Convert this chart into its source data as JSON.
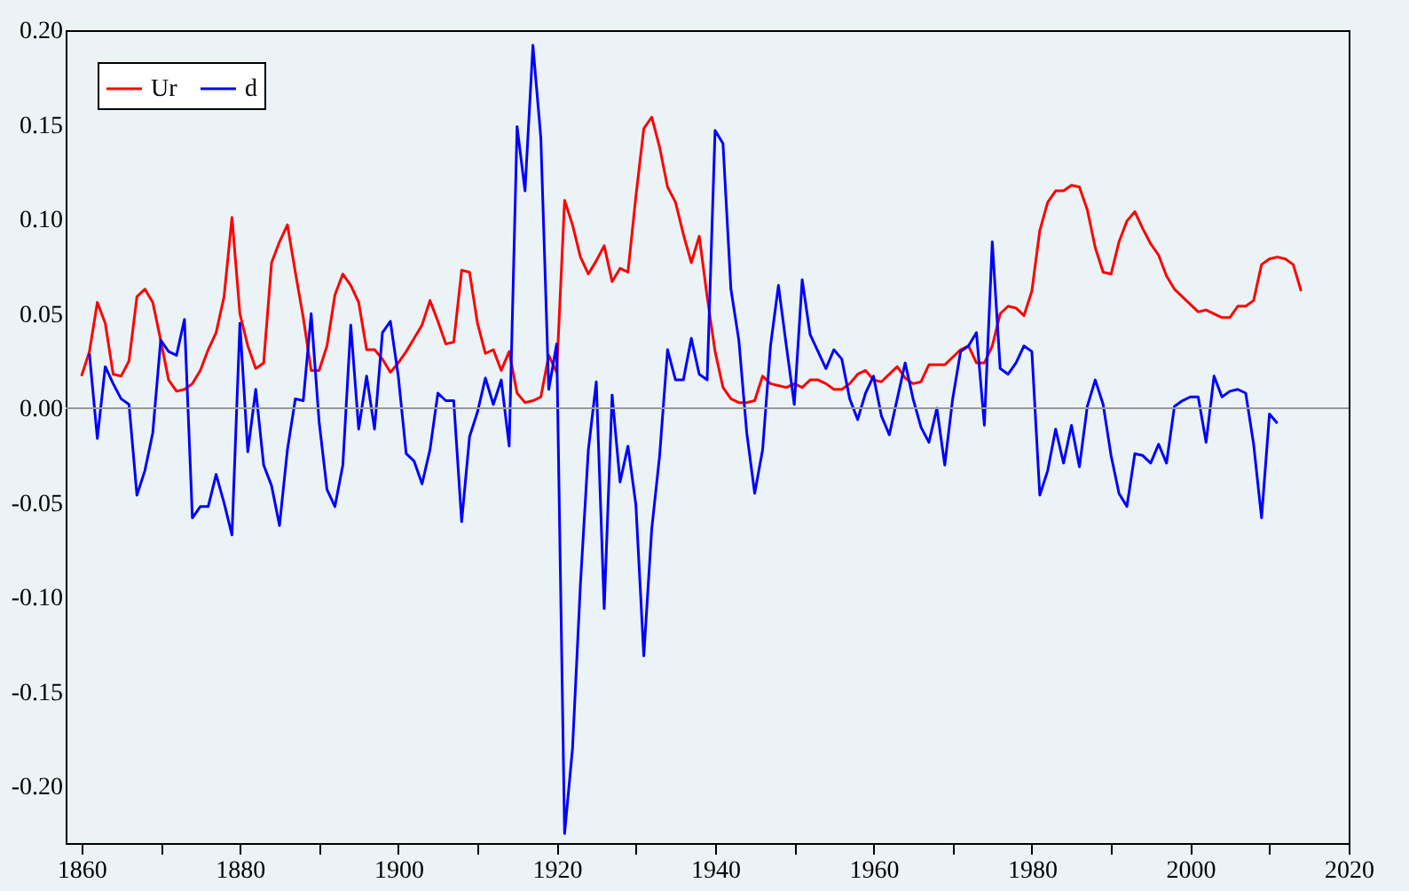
{
  "chart_data": {
    "type": "line",
    "legend": "top left",
    "grid": false,
    "line_style": "solid",
    "marker": "none",
    "xlim": [
      1858,
      2020
    ],
    "ylim": [
      -0.23,
      0.2
    ],
    "xticks": [
      1860,
      {
        "value": 1870,
        "label": null
      },
      1880,
      {
        "value": 1890,
        "label": null
      },
      1900,
      {
        "value": 1910,
        "label": null
      },
      1920,
      {
        "value": 1930,
        "label": null
      },
      1940,
      {
        "value": 1950,
        "label": null
      },
      1960,
      {
        "value": 1970,
        "label": null
      },
      1980,
      {
        "value": 1990,
        "label": null
      },
      2000,
      {
        "value": 2010,
        "label": null
      },
      2020
    ],
    "yticks": [
      {
        "value": -0.2,
        "label": "-0.20"
      },
      {
        "value": -0.15,
        "label": "-0.15"
      },
      {
        "value": -0.1,
        "label": "-0.10"
      },
      {
        "value": -0.05,
        "label": "-0.05"
      },
      {
        "value": 0,
        "label": "0.00"
      },
      {
        "value": 0.05,
        "label": "0.05"
      },
      {
        "value": 0.1,
        "label": "0.10"
      },
      {
        "value": 0.15,
        "label": "0.15"
      },
      {
        "value": 0.2,
        "label": "0.20"
      }
    ],
    "ref_lines": [
      {
        "axis": "y",
        "value": 0,
        "color": "#999999",
        "line_style": "solid"
      }
    ],
    "series": [
      {
        "name": "Ur",
        "color": "#ff0000",
        "x": [
          1860,
          1861,
          1862,
          1863,
          1864,
          1865,
          1866,
          1867,
          1868,
          1869,
          1870,
          1871,
          1872,
          1873,
          1874,
          1875,
          1876,
          1877,
          1878,
          1879,
          1880,
          1881,
          1882,
          1883,
          1884,
          1885,
          1886,
          1887,
          1888,
          1889,
          1890,
          1891,
          1892,
          1893,
          1894,
          1895,
          1896,
          1897,
          1898,
          1899,
          1900,
          1901,
          1902,
          1903,
          1904,
          1905,
          1906,
          1907,
          1908,
          1909,
          1910,
          1911,
          1912,
          1913,
          1914,
          1915,
          1916,
          1917,
          1918,
          1919,
          1920,
          1921,
          1922,
          1923,
          1924,
          1925,
          1926,
          1927,
          1928,
          1929,
          1930,
          1931,
          1932,
          1933,
          1934,
          1935,
          1936,
          1937,
          1938,
          1939,
          1940,
          1941,
          1942,
          1943,
          1944,
          1945,
          1946,
          1947,
          1948,
          1949,
          1950,
          1951,
          1952,
          1953,
          1954,
          1955,
          1956,
          1957,
          1958,
          1959,
          1960,
          1961,
          1962,
          1963,
          1964,
          1965,
          1966,
          1967,
          1968,
          1969,
          1970,
          1971,
          1972,
          1973,
          1974,
          1975,
          1976,
          1977,
          1978,
          1979,
          1980,
          1981,
          1982,
          1983,
          1984,
          1985,
          1986,
          1987,
          1988,
          1989,
          1990,
          1991,
          1992,
          1993,
          1994,
          1995,
          1996,
          1997,
          1998,
          1999,
          2000,
          2001,
          2002,
          2003,
          2004,
          2005,
          2006,
          2007,
          2008,
          2009,
          2010,
          2011,
          2012,
          2013,
          2014
        ],
        "values": [
          0.017,
          0.03,
          0.056,
          0.045,
          0.018,
          0.017,
          0.025,
          0.059,
          0.063,
          0.056,
          0.036,
          0.015,
          0.009,
          0.01,
          0.013,
          0.02,
          0.031,
          0.04,
          0.059,
          0.101,
          0.05,
          0.033,
          0.021,
          0.024,
          0.077,
          0.088,
          0.097,
          0.072,
          0.048,
          0.02,
          0.02,
          0.033,
          0.06,
          0.071,
          0.065,
          0.056,
          0.031,
          0.031,
          0.026,
          0.019,
          0.024,
          0.03,
          0.037,
          0.044,
          0.057,
          0.046,
          0.034,
          0.035,
          0.073,
          0.072,
          0.045,
          0.029,
          0.031,
          0.02,
          0.03,
          0.008,
          0.003,
          0.004,
          0.006,
          0.028,
          0.019,
          0.11,
          0.097,
          0.08,
          0.071,
          0.078,
          0.086,
          0.067,
          0.074,
          0.072,
          0.112,
          0.148,
          0.154,
          0.138,
          0.117,
          0.109,
          0.092,
          0.077,
          0.091,
          0.059,
          0.03,
          0.011,
          0.005,
          0.003,
          0.003,
          0.004,
          0.017,
          0.013,
          0.012,
          0.011,
          0.013,
          0.011,
          0.015,
          0.015,
          0.013,
          0.01,
          0.01,
          0.013,
          0.018,
          0.02,
          0.015,
          0.014,
          0.018,
          0.022,
          0.016,
          0.013,
          0.014,
          0.023,
          0.023,
          0.023,
          0.027,
          0.031,
          0.033,
          0.024,
          0.024,
          0.033,
          0.05,
          0.054,
          0.053,
          0.049,
          0.062,
          0.094,
          0.109,
          0.115,
          0.115,
          0.118,
          0.117,
          0.105,
          0.085,
          0.072,
          0.071,
          0.088,
          0.099,
          0.104,
          0.095,
          0.087,
          0.081,
          0.07,
          0.063,
          0.059,
          0.055,
          0.051,
          0.052,
          0.05,
          0.048,
          0.048,
          0.054,
          0.054,
          0.057,
          0.076,
          0.079,
          0.08,
          0.079,
          0.076,
          0.062
        ]
      },
      {
        "name": "d",
        "color": "#0000ff",
        "x": [
          1861,
          1862,
          1863,
          1864,
          1865,
          1866,
          1867,
          1868,
          1869,
          1870,
          1871,
          1872,
          1873,
          1874,
          1875,
          1876,
          1877,
          1878,
          1879,
          1880,
          1881,
          1882,
          1883,
          1884,
          1885,
          1886,
          1887,
          1888,
          1889,
          1890,
          1891,
          1892,
          1893,
          1894,
          1895,
          1896,
          1897,
          1898,
          1899,
          1900,
          1901,
          1902,
          1903,
          1904,
          1905,
          1906,
          1907,
          1908,
          1909,
          1910,
          1911,
          1912,
          1913,
          1914,
          1915,
          1916,
          1917,
          1918,
          1919,
          1920,
          1921,
          1922,
          1923,
          1924,
          1925,
          1926,
          1927,
          1928,
          1929,
          1930,
          1931,
          1932,
          1933,
          1934,
          1935,
          1936,
          1937,
          1938,
          1939,
          1940,
          1941,
          1942,
          1943,
          1944,
          1945,
          1946,
          1947,
          1948,
          1949,
          1950,
          1951,
          1952,
          1953,
          1954,
          1955,
          1956,
          1957,
          1958,
          1959,
          1960,
          1961,
          1962,
          1963,
          1964,
          1965,
          1966,
          1967,
          1968,
          1969,
          1970,
          1971,
          1972,
          1973,
          1974,
          1975,
          1976,
          1977,
          1978,
          1979,
          1980,
          1981,
          1982,
          1983,
          1984,
          1985,
          1986,
          1987,
          1988,
          1989,
          1990,
          1991,
          1992,
          1993,
          1994,
          1995,
          1996,
          1997,
          1998,
          1999,
          2000,
          2001,
          2002,
          2003,
          2004,
          2005,
          2006,
          2007,
          2008,
          2009,
          2010,
          2011
        ],
        "values": [
          0.029,
          -0.016,
          0.022,
          0.013,
          0.005,
          0.002,
          -0.046,
          -0.033,
          -0.013,
          0.036,
          0.03,
          0.028,
          0.047,
          -0.058,
          -0.052,
          -0.052,
          -0.035,
          -0.05,
          -0.067,
          0.045,
          -0.023,
          0.01,
          -0.03,
          -0.041,
          -0.062,
          -0.022,
          0.005,
          0.004,
          0.05,
          -0.007,
          -0.043,
          -0.052,
          -0.03,
          0.044,
          -0.011,
          0.017,
          -0.011,
          0.04,
          0.046,
          0.017,
          -0.024,
          -0.028,
          -0.04,
          -0.022,
          0.008,
          0.004,
          0.004,
          -0.06,
          -0.015,
          -0.002,
          0.016,
          0.002,
          0.015,
          -0.02,
          0.149,
          0.115,
          0.192,
          0.143,
          0.01,
          0.034,
          -0.225,
          -0.18,
          -0.093,
          -0.022,
          0.014,
          -0.106,
          0.007,
          -0.039,
          -0.02,
          -0.051,
          -0.131,
          -0.064,
          -0.025,
          0.031,
          0.015,
          0.015,
          0.037,
          0.018,
          0.015,
          0.147,
          0.14,
          0.063,
          0.036,
          -0.013,
          -0.045,
          -0.022,
          0.033,
          0.065,
          0.033,
          0.002,
          0.068,
          0.039,
          0.03,
          0.021,
          0.031,
          0.026,
          0.005,
          -0.006,
          0.008,
          0.017,
          -0.004,
          -0.014,
          0.005,
          0.024,
          0.005,
          -0.01,
          -0.018,
          0.0,
          -0.03,
          0.005,
          0.03,
          0.033,
          0.04,
          -0.009,
          0.088,
          0.021,
          0.018,
          0.024,
          0.033,
          0.03,
          -0.046,
          -0.033,
          -0.011,
          -0.029,
          -0.009,
          -0.031,
          0.001,
          0.015,
          0.002,
          -0.025,
          -0.045,
          -0.052,
          -0.024,
          -0.025,
          -0.029,
          -0.019,
          -0.029,
          0.001,
          0.004,
          0.006,
          0.006,
          -0.018,
          0.017,
          0.006,
          0.009,
          0.01,
          0.008,
          -0.019,
          -0.058,
          -0.003,
          -0.008
        ]
      }
    ]
  }
}
